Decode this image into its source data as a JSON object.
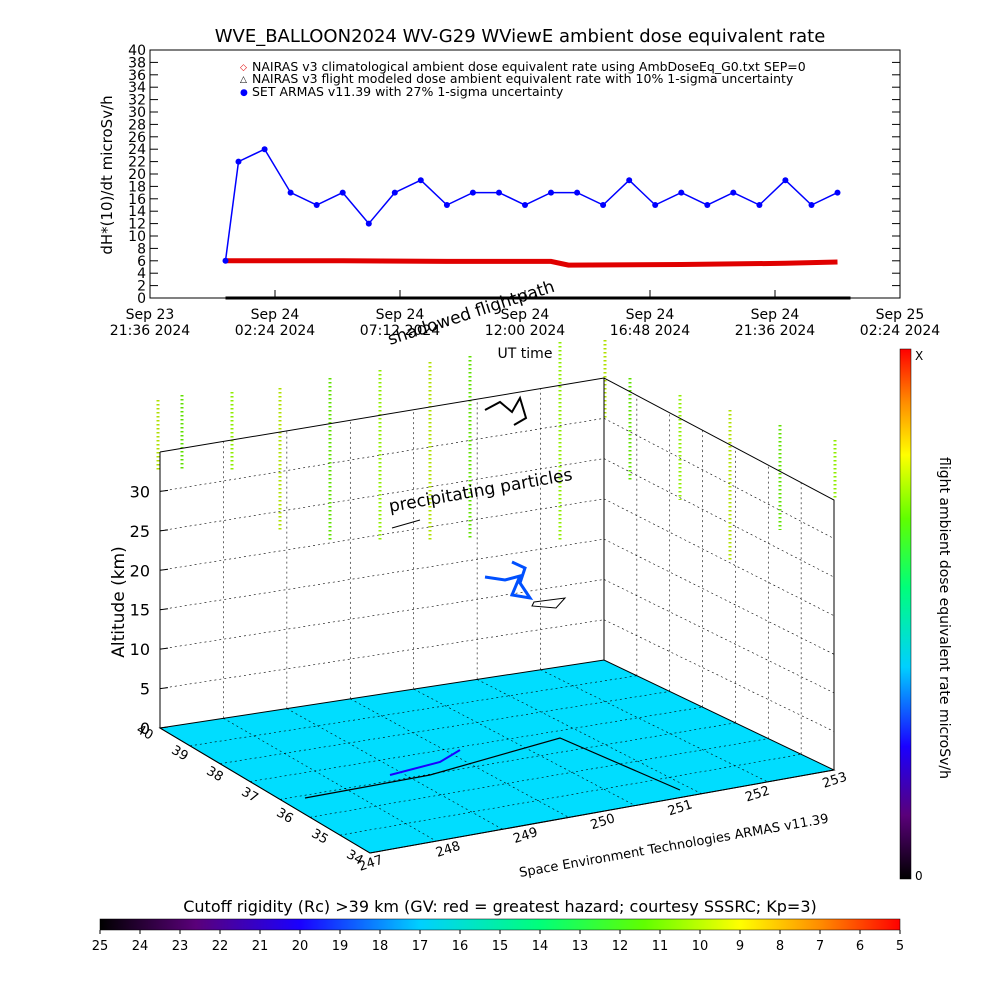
{
  "title": "WVE_BALLOON2024 WV-G29 WViewE ambient dose equivalent rate",
  "legend": [
    {
      "marker": "◇",
      "color": "#e00000",
      "text": "NAIRAS v3 climatological ambient dose equivalent rate using AmbDoseEq_G0.txt SEP=0"
    },
    {
      "marker": "△",
      "color": "#000000",
      "text": "NAIRAS v3 flight modeled dose ambient equivalent rate with 10% 1-sigma uncertainty"
    },
    {
      "marker": "●",
      "color": "#0000ff",
      "text": "SET ARMAS v11.39 with 27% 1-sigma uncertainty"
    }
  ],
  "top_axes": {
    "ylabel": "dH*(10)/dt microSv/h",
    "xlabel": "UT time",
    "yticks": [
      "0",
      "2",
      "4",
      "6",
      "8",
      "10",
      "12",
      "14",
      "16",
      "18",
      "20",
      "22",
      "24",
      "26",
      "28",
      "30",
      "32",
      "34",
      "36",
      "38",
      "40"
    ],
    "xticks": [
      {
        "d": "Sep 23",
        "t": "21:36 2024"
      },
      {
        "d": "Sep 24",
        "t": "02:24 2024"
      },
      {
        "d": "Sep 24",
        "t": "07:12 2024"
      },
      {
        "d": "Sep 24",
        "t": "12:00 2024"
      },
      {
        "d": "Sep 24",
        "t": "16:48 2024"
      },
      {
        "d": "Sep 24",
        "t": "21:36 2024"
      },
      {
        "d": "Sep 25",
        "t": "02:24 2024"
      }
    ]
  },
  "chart_data": [
    {
      "type": "line",
      "xlabel": "UT time",
      "ylabel": "dH*(10)/dt microSv/h",
      "ylim": [
        0,
        40
      ],
      "xlim": [
        "2024-09-23 21:36",
        "2024-09-25 02:24"
      ],
      "series": [
        {
          "name": "NAIRAS v3 climatological ambient dose equivalent rate using AmbDoseEq_G0.txt SEP=0",
          "color": "#e00000",
          "x": [
            "2024-09-24 00:30",
            "2024-09-24 05:00",
            "2024-09-24 09:00",
            "2024-09-24 13:00",
            "2024-09-24 13:40",
            "2024-09-24 18:00",
            "2024-09-24 22:00",
            "2024-09-25 00:00"
          ],
          "y": [
            6.0,
            6.0,
            5.9,
            5.9,
            5.3,
            5.4,
            5.6,
            5.8
          ]
        },
        {
          "name": "NAIRAS v3 flight modeled dose ambient equivalent rate with 10% 1-sigma uncertainty",
          "color": "#000000",
          "x": [
            "2024-09-24 00:30",
            "2024-09-25 00:30"
          ],
          "y": [
            0,
            0
          ]
        },
        {
          "name": "SET ARMAS v11.39 with 27% 1-sigma uncertainty",
          "color": "#0000ff",
          "x": [
            "2024-09-24 00:30",
            "2024-09-24 01:00",
            "2024-09-24 02:00",
            "2024-09-24 03:00",
            "2024-09-24 04:00",
            "2024-09-24 05:00",
            "2024-09-24 06:00",
            "2024-09-24 07:00",
            "2024-09-24 08:00",
            "2024-09-24 09:00",
            "2024-09-24 10:00",
            "2024-09-24 11:00",
            "2024-09-24 12:00",
            "2024-09-24 13:00",
            "2024-09-24 14:00",
            "2024-09-24 15:00",
            "2024-09-24 16:00",
            "2024-09-24 17:00",
            "2024-09-24 18:00",
            "2024-09-24 19:00",
            "2024-09-24 20:00",
            "2024-09-24 21:00",
            "2024-09-24 22:00",
            "2024-09-24 23:00",
            "2024-09-25 00:00"
          ],
          "y": [
            6,
            22,
            24,
            17,
            15,
            17,
            12,
            17,
            19,
            15,
            17,
            17,
            15,
            17,
            17,
            15,
            19,
            15,
            17,
            15,
            17,
            15,
            19,
            15,
            17
          ]
        }
      ]
    },
    {
      "type": "scatter",
      "zlabel": "Altitude (km)",
      "zlim": [
        0,
        35
      ],
      "zticks": [
        "0",
        "5",
        "10",
        "15",
        "20",
        "25",
        "30"
      ],
      "lat_ticks": [
        "34",
        "35",
        "36",
        "37",
        "38",
        "39",
        "40"
      ],
      "lon_ticks": [
        "247",
        "248",
        "249",
        "250",
        "251",
        "252",
        "253"
      ],
      "annotations": [
        "shadowed flightpath",
        "precipitating particles"
      ],
      "credit": "Space Environment Technologies ARMAS v11.39"
    }
  ],
  "colorbar_right": {
    "label": "flight ambient dose equivalent rate microSv/h",
    "top": "X",
    "bottom": "0"
  },
  "colorbar_bottom": {
    "label": "Cutoff rigidity (Rc) >39 km (GV: red = greatest hazard; courtesy SSSRC; Kp=3)",
    "ticks": [
      "25",
      "24",
      "23",
      "22",
      "21",
      "20",
      "19",
      "18",
      "17",
      "16",
      "15",
      "14",
      "13",
      "12",
      "11",
      "10",
      "9",
      "8",
      "7",
      "6",
      "5"
    ]
  }
}
